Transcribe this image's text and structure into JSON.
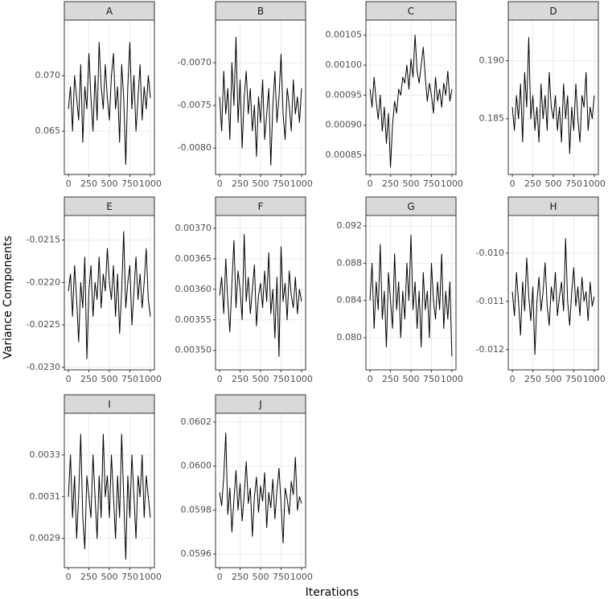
{
  "ylabel": "Variance Components",
  "xlabel": "Iterations",
  "chart_data": [
    {
      "type": "line",
      "title": "A",
      "color": "#000000",
      "grid": true,
      "x": [
        0,
        25,
        50,
        75,
        100,
        125,
        150,
        175,
        200,
        225,
        250,
        275,
        300,
        325,
        350,
        375,
        400,
        425,
        450,
        475,
        500,
        525,
        550,
        575,
        600,
        625,
        650,
        675,
        700,
        725,
        750,
        775,
        800,
        825,
        850,
        875,
        900,
        925,
        950,
        975,
        1000
      ],
      "values": [
        0.067,
        0.069,
        0.065,
        0.07,
        0.068,
        0.066,
        0.071,
        0.064,
        0.069,
        0.067,
        0.072,
        0.068,
        0.065,
        0.07,
        0.066,
        0.073,
        0.069,
        0.067,
        0.071,
        0.068,
        0.066,
        0.07,
        0.072,
        0.067,
        0.069,
        0.064,
        0.071,
        0.068,
        0.062,
        0.069,
        0.073,
        0.067,
        0.07,
        0.065,
        0.068,
        0.071,
        0.066,
        0.069,
        0.067,
        0.07,
        0.068
      ],
      "xlim": [
        -50,
        1050
      ],
      "xticks": [
        0,
        250,
        500,
        750,
        1000
      ],
      "ylim": [
        0.0611,
        0.075
      ],
      "yticks": [
        0.065,
        {
          "value": 0.07,
          "label": "0.070"
        }
      ]
    },
    {
      "type": "line",
      "title": "B",
      "color": "#000000",
      "grid": true,
      "x": [
        0,
        25,
        50,
        75,
        100,
        125,
        150,
        175,
        200,
        225,
        250,
        275,
        300,
        325,
        350,
        375,
        400,
        425,
        450,
        475,
        500,
        525,
        550,
        575,
        600,
        625,
        650,
        675,
        700,
        725,
        750,
        775,
        800,
        825,
        850,
        875,
        900,
        925,
        950,
        975,
        1000
      ],
      "values": [
        -0.0074,
        -0.0078,
        -0.0071,
        -0.0076,
        -0.0073,
        -0.0079,
        -0.007,
        -0.0075,
        -0.0067,
        -0.0077,
        -0.0072,
        -0.008,
        -0.0074,
        -0.0071,
        -0.0076,
        -0.0073,
        -0.0078,
        -0.0075,
        -0.0081,
        -0.0074,
        -0.0077,
        -0.0072,
        -0.0079,
        -0.0076,
        -0.0073,
        -0.0082,
        -0.0075,
        -0.0071,
        -0.0077,
        -0.0074,
        -0.0069,
        -0.0076,
        -0.0079,
        -0.0073,
        -0.0075,
        -0.0078,
        -0.0072,
        -0.0076,
        -0.0074,
        -0.0077,
        -0.0073
      ],
      "xlim": [
        -50,
        1050
      ],
      "xticks": [
        0,
        250,
        500,
        750,
        1000
      ],
      "ylim": [
        -0.00831,
        -0.0065
      ],
      "yticks": [
        {
          "value": -0.008,
          "label": "-0.0080"
        },
        -0.0075,
        {
          "value": -0.007,
          "label": "-0.0070"
        }
      ]
    },
    {
      "type": "line",
      "title": "C",
      "color": "#000000",
      "grid": true,
      "x": [
        0,
        25,
        50,
        75,
        100,
        125,
        150,
        175,
        200,
        225,
        250,
        275,
        300,
        325,
        350,
        375,
        400,
        425,
        450,
        475,
        500,
        525,
        550,
        575,
        600,
        625,
        650,
        675,
        700,
        725,
        750,
        775,
        800,
        825,
        850,
        875,
        900,
        925,
        950,
        975,
        1000
      ],
      "values": [
        0.00096,
        0.00093,
        0.00098,
        0.00094,
        0.00091,
        0.00095,
        0.00089,
        0.00093,
        0.00087,
        0.00092,
        0.00083,
        0.0009,
        0.00094,
        0.00092,
        0.00096,
        0.00095,
        0.00098,
        0.00097,
        0.001,
        0.00096,
        0.00101,
        0.00098,
        0.00105,
        0.00099,
        0.00097,
        0.001,
        0.00103,
        0.00098,
        0.00094,
        0.00097,
        0.00095,
        0.00092,
        0.00098,
        0.00094,
        0.00096,
        0.00093,
        0.00097,
        0.00095,
        0.00099,
        0.00094,
        0.00096
      ],
      "xlim": [
        -50,
        1050
      ],
      "xticks": [
        0,
        250,
        500,
        750,
        1000
      ],
      "ylim": [
        0.000818,
        0.001075
      ],
      "yticks": [
        0.00085,
        {
          "value": 0.0009,
          "label": "0.00090"
        },
        0.00095,
        {
          "value": 0.001,
          "label": "0.00100"
        },
        0.00105
      ]
    },
    {
      "type": "line",
      "title": "D",
      "color": "#000000",
      "grid": true,
      "x": [
        0,
        25,
        50,
        75,
        100,
        125,
        150,
        175,
        200,
        225,
        250,
        275,
        300,
        325,
        350,
        375,
        400,
        425,
        450,
        475,
        500,
        525,
        550,
        575,
        600,
        625,
        650,
        675,
        700,
        725,
        750,
        775,
        800,
        825,
        850,
        875,
        900,
        925,
        950,
        975,
        1000
      ],
      "values": [
        0.186,
        0.184,
        0.187,
        0.185,
        0.188,
        0.183,
        0.189,
        0.186,
        0.192,
        0.185,
        0.187,
        0.184,
        0.186,
        0.183,
        0.188,
        0.185,
        0.187,
        0.184,
        0.189,
        0.186,
        0.185,
        0.187,
        0.184,
        0.186,
        0.183,
        0.188,
        0.185,
        0.187,
        0.182,
        0.186,
        0.184,
        0.188,
        0.185,
        0.183,
        0.187,
        0.186,
        0.189,
        0.184,
        0.186,
        0.185,
        0.187
      ],
      "xlim": [
        -50,
        1050
      ],
      "xticks": [
        0,
        250,
        500,
        750,
        1000
      ],
      "ylim": [
        0.1802,
        0.1935
      ],
      "yticks": [
        0.185,
        {
          "value": 0.19,
          "label": "0.190"
        }
      ]
    },
    {
      "type": "line",
      "title": "E",
      "color": "#000000",
      "grid": true,
      "x": [
        0,
        25,
        50,
        75,
        100,
        125,
        150,
        175,
        200,
        225,
        250,
        275,
        300,
        325,
        350,
        375,
        400,
        425,
        450,
        475,
        500,
        525,
        550,
        575,
        600,
        625,
        650,
        675,
        700,
        725,
        750,
        775,
        800,
        825,
        850,
        875,
        900,
        925,
        950,
        975,
        1000
      ],
      "values": [
        -0.0221,
        -0.0219,
        -0.0224,
        -0.0218,
        -0.0222,
        -0.0227,
        -0.022,
        -0.0223,
        -0.0217,
        -0.0229,
        -0.0221,
        -0.0218,
        -0.0224,
        -0.022,
        -0.0222,
        -0.0217,
        -0.0223,
        -0.0219,
        -0.0221,
        -0.0216,
        -0.022,
        -0.0222,
        -0.0218,
        -0.0224,
        -0.0219,
        -0.0226,
        -0.0221,
        -0.0214,
        -0.0223,
        -0.022,
        -0.0218,
        -0.0225,
        -0.0221,
        -0.0217,
        -0.0222,
        -0.0219,
        -0.0223,
        -0.022,
        -0.0216,
        -0.0222,
        -0.0224
      ],
      "xlim": [
        -50,
        1050
      ],
      "xticks": [
        0,
        250,
        500,
        750,
        1000
      ],
      "ylim": [
        -0.02303,
        -0.02121
      ],
      "yticks": [
        {
          "value": -0.023,
          "label": "-0.0230"
        },
        -0.0225,
        {
          "value": -0.022,
          "label": "-0.0220"
        },
        -0.0215
      ]
    },
    {
      "type": "line",
      "title": "F",
      "color": "#000000",
      "grid": true,
      "x": [
        0,
        25,
        50,
        75,
        100,
        125,
        150,
        175,
        200,
        225,
        250,
        275,
        300,
        325,
        350,
        375,
        400,
        425,
        450,
        475,
        500,
        525,
        550,
        575,
        600,
        625,
        650,
        675,
        700,
        725,
        750,
        775,
        800,
        825,
        850,
        875,
        900,
        925,
        950,
        975,
        1000
      ],
      "values": [
        0.00359,
        0.00362,
        0.00356,
        0.00365,
        0.00358,
        0.00353,
        0.00361,
        0.00368,
        0.00357,
        0.00363,
        0.0036,
        0.00355,
        0.00369,
        0.00358,
        0.00362,
        0.00356,
        0.0036,
        0.00364,
        0.00354,
        0.00359,
        0.00361,
        0.00357,
        0.00363,
        0.00358,
        0.00366,
        0.00356,
        0.0036,
        0.00352,
        0.00362,
        0.00349,
        0.00367,
        0.00358,
        0.00361,
        0.00355,
        0.00363,
        0.00359,
        0.00357,
        0.00362,
        0.00356,
        0.0036,
        0.00358
      ],
      "xlim": [
        -50,
        1050
      ],
      "xticks": [
        0,
        250,
        500,
        750,
        1000
      ],
      "ylim": [
        0.003468,
        0.003721
      ],
      "yticks": [
        {
          "value": 0.0035,
          "label": "0.00350"
        },
        0.00355,
        {
          "value": 0.0036,
          "label": "0.00360"
        },
        0.00365,
        {
          "value": 0.0037,
          "label": "0.00370"
        }
      ]
    },
    {
      "type": "line",
      "title": "G",
      "color": "#000000",
      "grid": true,
      "x": [
        0,
        25,
        50,
        75,
        100,
        125,
        150,
        175,
        200,
        225,
        250,
        275,
        300,
        325,
        350,
        375,
        400,
        425,
        450,
        475,
        500,
        525,
        550,
        575,
        600,
        625,
        650,
        675,
        700,
        725,
        750,
        775,
        800,
        825,
        850,
        875,
        900,
        925,
        950,
        975,
        1000
      ],
      "values": [
        0.084,
        0.088,
        0.081,
        0.086,
        0.083,
        0.09,
        0.082,
        0.085,
        0.079,
        0.087,
        0.084,
        0.081,
        0.089,
        0.083,
        0.086,
        0.08,
        0.085,
        0.082,
        0.088,
        0.084,
        0.091,
        0.083,
        0.086,
        0.081,
        0.085,
        0.079,
        0.087,
        0.083,
        0.085,
        0.08,
        0.088,
        0.084,
        0.082,
        0.086,
        0.083,
        0.089,
        0.081,
        0.085,
        0.082,
        0.086,
        0.078
      ],
      "xlim": [
        -50,
        1050
      ],
      "xticks": [
        0,
        250,
        500,
        750,
        1000
      ],
      "ylim": [
        0.07655,
        0.09312
      ],
      "yticks": [
        {
          "value": 0.08,
          "label": "0.080"
        },
        0.084,
        0.088,
        0.092
      ]
    },
    {
      "type": "line",
      "title": "H",
      "color": "#000000",
      "grid": true,
      "x": [
        0,
        25,
        50,
        75,
        100,
        125,
        150,
        175,
        200,
        225,
        250,
        275,
        300,
        325,
        350,
        375,
        400,
        425,
        450,
        475,
        500,
        525,
        550,
        575,
        600,
        625,
        650,
        675,
        700,
        725,
        750,
        775,
        800,
        825,
        850,
        875,
        900,
        925,
        950,
        975,
        1000
      ],
      "values": [
        -0.0108,
        -0.0113,
        -0.0104,
        -0.011,
        -0.0117,
        -0.0106,
        -0.0112,
        -0.0101,
        -0.0109,
        -0.0114,
        -0.0107,
        -0.0121,
        -0.011,
        -0.0105,
        -0.0112,
        -0.0108,
        -0.0102,
        -0.0111,
        -0.0115,
        -0.0107,
        -0.011,
        -0.0104,
        -0.0113,
        -0.0109,
        -0.0106,
        -0.0112,
        -0.0097,
        -0.011,
        -0.0115,
        -0.0108,
        -0.0103,
        -0.0111,
        -0.0107,
        -0.0113,
        -0.0105,
        -0.011,
        -0.0108,
        -0.0114,
        -0.0106,
        -0.0111,
        -0.0109
      ],
      "xlim": [
        -50,
        1050
      ],
      "xticks": [
        0,
        250,
        500,
        750,
        1000
      ],
      "ylim": [
        -0.01242,
        -0.00922
      ],
      "yticks": [
        -0.012,
        -0.011,
        {
          "value": -0.01,
          "label": "-0.010"
        }
      ]
    },
    {
      "type": "line",
      "title": "I",
      "color": "#000000",
      "grid": true,
      "x": [
        0,
        25,
        50,
        75,
        100,
        125,
        150,
        175,
        200,
        225,
        250,
        275,
        300,
        325,
        350,
        375,
        400,
        425,
        450,
        475,
        500,
        525,
        550,
        575,
        600,
        625,
        650,
        675,
        700,
        725,
        750,
        775,
        800,
        825,
        850,
        875,
        900,
        925,
        950,
        975,
        1000
      ],
      "values": [
        0.0031,
        0.0033,
        0.003,
        0.0032,
        0.0029,
        0.0031,
        0.0034,
        0.003,
        0.00285,
        0.0032,
        0.0031,
        0.003,
        0.0033,
        0.0031,
        0.0029,
        0.0032,
        0.003,
        0.0034,
        0.0031,
        0.0032,
        0.003,
        0.0033,
        0.0031,
        0.0029,
        0.0032,
        0.003,
        0.0034,
        0.0031,
        0.0028,
        0.0032,
        0.003,
        0.0033,
        0.0031,
        0.0029,
        0.0032,
        0.0031,
        0.0033,
        0.003,
        0.0032,
        0.0031,
        0.003
      ],
      "xlim": [
        -50,
        1050
      ],
      "xticks": [
        0,
        250,
        500,
        750,
        1000
      ],
      "ylim": [
        0.00276,
        0.0035
      ],
      "yticks": [
        0.0029,
        0.0031,
        0.0033
      ]
    },
    {
      "type": "line",
      "title": "J",
      "color": "#000000",
      "grid": true,
      "x": [
        0,
        25,
        50,
        75,
        100,
        125,
        150,
        175,
        200,
        225,
        250,
        275,
        300,
        325,
        350,
        375,
        400,
        425,
        450,
        475,
        500,
        525,
        550,
        575,
        600,
        625,
        650,
        675,
        700,
        725,
        750,
        775,
        800,
        825,
        850,
        875,
        900,
        925,
        950,
        975,
        1000
      ],
      "values": [
        0.05988,
        0.05982,
        0.05995,
        0.06015,
        0.05978,
        0.0599,
        0.0597,
        0.05985,
        0.05998,
        0.0598,
        0.05992,
        0.05975,
        0.05987,
        0.06002,
        0.05983,
        0.0599,
        0.05968,
        0.05986,
        0.05995,
        0.05979,
        0.05991,
        0.05984,
        0.05997,
        0.05972,
        0.05988,
        0.05981,
        0.05994,
        0.05976,
        0.05989,
        0.05999,
        0.05983,
        0.05965,
        0.0599,
        0.05985,
        0.05978,
        0.05993,
        0.05987,
        0.06004,
        0.0598,
        0.05986,
        0.05983
      ],
      "xlim": [
        -50,
        1050
      ],
      "xticks": [
        0,
        250,
        500,
        750,
        1000
      ],
      "ylim": [
        0.059538,
        0.06024
      ],
      "yticks": [
        0.0596,
        0.0598,
        {
          "value": 0.06,
          "label": "0.0600"
        },
        0.0602
      ]
    }
  ]
}
